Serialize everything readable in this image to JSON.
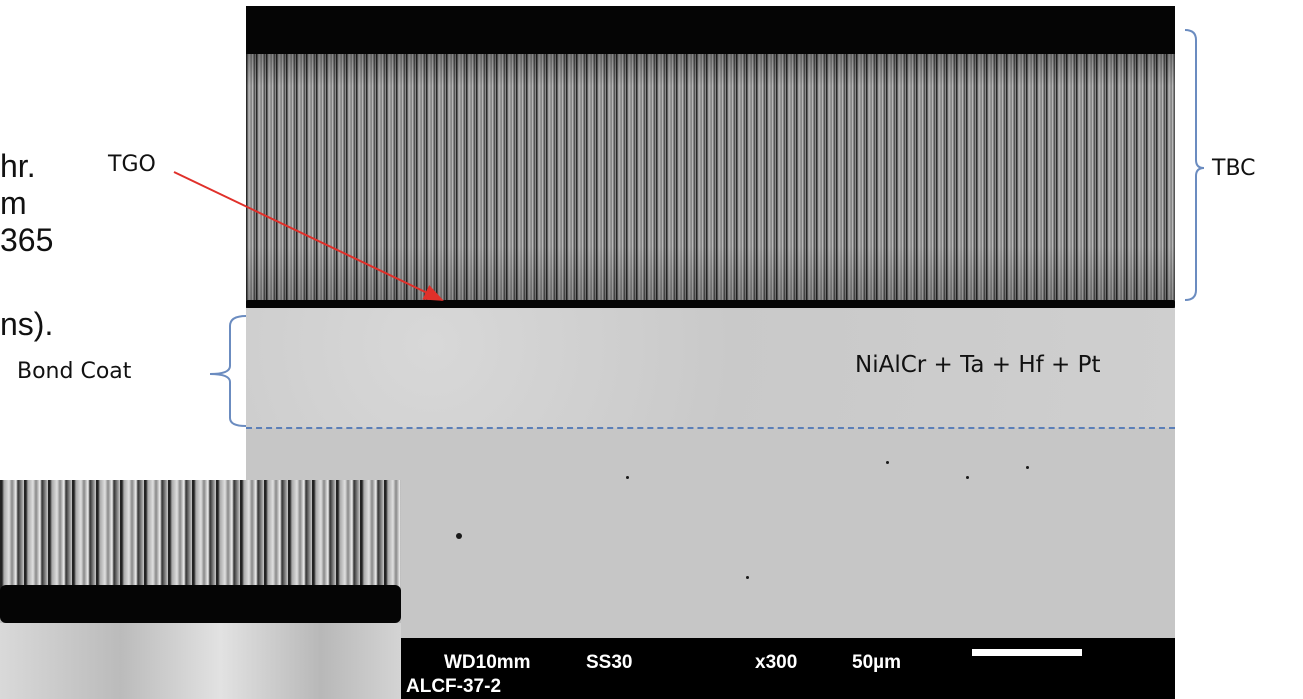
{
  "clipped_text": [
    "hr.",
    "m",
    "365",
    "ns)."
  ],
  "labels": {
    "tgo": "TGO",
    "tbc": "TBC",
    "bond_coat": "Bond Coat",
    "composition": "NiAlCr + Ta + Hf + Pt"
  },
  "sem_info": {
    "wd": "WD10mm",
    "ss": "SS30",
    "magnification": "x300",
    "scale": "50µm",
    "sample_id": "ALCF-37-2"
  },
  "colors": {
    "arrow": "#e0302a",
    "bracket": "#6b8cc0",
    "dash": "#5b7fb8"
  }
}
